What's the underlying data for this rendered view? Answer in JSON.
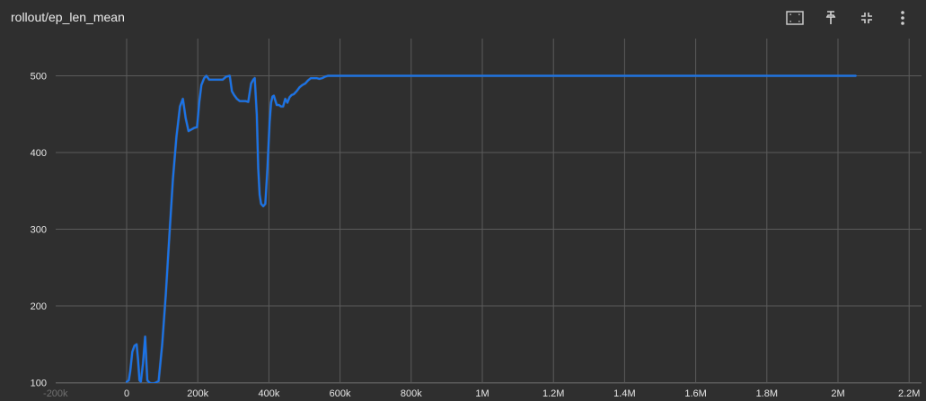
{
  "card": {
    "title": "rollout/ep_len_mean"
  },
  "toolbar": {
    "icons": [
      "fit-domain-icon",
      "pin-icon",
      "collapse-icon",
      "more-vert-icon"
    ]
  },
  "colors": {
    "background": "#2f2f2f",
    "grid": "#5b5b5b",
    "line": "#1a73e8",
    "raw_line": "#555a62",
    "text": "#e6e6e6"
  },
  "chart_data": {
    "type": "line",
    "title": "rollout/ep_len_mean",
    "xlabel": "",
    "ylabel": "",
    "xlim": [
      -180000,
      2100000
    ],
    "ylim": [
      100,
      550
    ],
    "x_ticks": [
      -200000,
      0,
      200000,
      400000,
      600000,
      800000,
      1000000,
      1200000,
      1400000,
      1600000,
      1800000,
      2000000,
      2200000
    ],
    "x_tick_labels": [
      "-200k",
      "0",
      "200k",
      "400k",
      "600k",
      "800k",
      "1M",
      "1.2M",
      "1.4M",
      "1.6M",
      "1.8M",
      "2M",
      "2.2M"
    ],
    "y_ticks": [
      100,
      200,
      300,
      400,
      500
    ],
    "y_tick_labels": [
      "100",
      "200",
      "300",
      "400",
      "500"
    ],
    "grid": true,
    "series": [
      {
        "x": [
          0,
          6000,
          10000,
          16000,
          22000,
          28000,
          32000,
          36000,
          40000,
          46000,
          52000,
          58000,
          64000,
          70000,
          76000,
          82000,
          90000,
          100000,
          110000,
          120000,
          130000,
          140000,
          150000,
          158000,
          166000,
          174000,
          182000,
          190000,
          198000,
          204000,
          210000,
          218000,
          224000,
          232000,
          240000,
          250000,
          260000,
          270000,
          280000,
          290000,
          296000,
          302000,
          310000,
          318000,
          326000,
          334000,
          342000,
          350000,
          356000,
          360000,
          366000,
          370000,
          374000,
          378000,
          384000,
          390000,
          396000,
          402000,
          406000,
          410000,
          414000,
          418000,
          422000,
          428000,
          434000,
          440000,
          446000,
          452000,
          458000,
          464000,
          470000,
          478000,
          486000,
          494000,
          502000,
          510000,
          518000,
          526000,
          534000,
          542000,
          550000,
          558000,
          566000,
          574000,
          582000,
          590000,
          600000,
          700000,
          800000,
          900000,
          1000000,
          1200000,
          1400000,
          1600000,
          1800000,
          2000000,
          2050000
        ],
        "values": [
          101,
          103,
          115,
          140,
          148,
          150,
          130,
          103,
          101,
          125,
          160,
          103,
          100,
          99,
          99,
          100,
          102,
          150,
          215,
          290,
          365,
          420,
          460,
          470,
          445,
          428,
          430,
          432,
          433,
          465,
          488,
          497,
          500,
          495,
          495,
          495,
          495,
          495,
          499,
          500,
          480,
          475,
          470,
          467,
          467,
          467,
          466,
          490,
          495,
          497,
          450,
          380,
          345,
          333,
          330,
          333,
          380,
          440,
          465,
          473,
          474,
          468,
          462,
          462,
          460,
          460,
          470,
          465,
          472,
          475,
          476,
          480,
          485,
          488,
          490,
          494,
          497,
          497,
          497,
          496,
          497,
          499,
          500,
          500,
          500,
          500,
          500,
          500,
          500,
          500,
          500,
          500,
          500,
          500,
          500,
          500,
          500
        ]
      }
    ]
  }
}
